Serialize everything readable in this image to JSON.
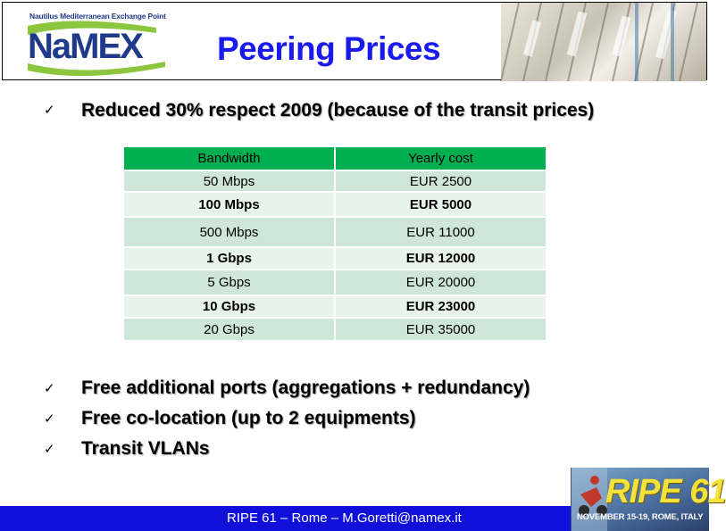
{
  "header": {
    "logo_tagline": "Nautilus Mediterranean Exchange Point",
    "logo_word": "NaMEX",
    "title": "Peering Prices"
  },
  "bullets_top": [
    {
      "text": "Reduced 30% respect 2009 (because of the transit prices)"
    }
  ],
  "table": {
    "headers": [
      "Bandwidth",
      "Yearly cost"
    ],
    "rows": [
      {
        "bandwidth": "50 Mbps",
        "cost": "EUR 2500",
        "bold": false
      },
      {
        "bandwidth": "100 Mbps",
        "cost": "EUR 5000",
        "bold": true
      },
      {
        "bandwidth": "500 Mbps",
        "cost": "EUR 11000",
        "bold": false
      },
      {
        "bandwidth": "1 Gbps",
        "cost": "EUR 12000",
        "bold": true
      },
      {
        "bandwidth": "5 Gbps",
        "cost": "EUR 20000",
        "bold": false
      },
      {
        "bandwidth": "10 Gbps",
        "cost": "EUR 23000",
        "bold": true
      },
      {
        "bandwidth": "20 Gbps",
        "cost": "EUR 35000",
        "bold": false
      }
    ]
  },
  "bullets_bottom": [
    {
      "text": "Free additional ports (aggregations + redundancy)"
    },
    {
      "text": "Free co-location (up to 2 equipments)"
    },
    {
      "text": "Transit VLANs"
    }
  ],
  "check_glyph": "✓",
  "footer": {
    "text": "RIPE 61 – Rome – M.Goretti@namex.it",
    "ripe_logo_word": "RIPE 61",
    "ripe_logo_date": "NOVEMBER 15-19, ROME, ITALY"
  },
  "colors": {
    "title": "#1a1aee",
    "table_header": "#00b050",
    "table_row_dark": "#cfe7d9",
    "table_row_light": "#e8f3ec",
    "footer_bar": "#1010d8"
  }
}
